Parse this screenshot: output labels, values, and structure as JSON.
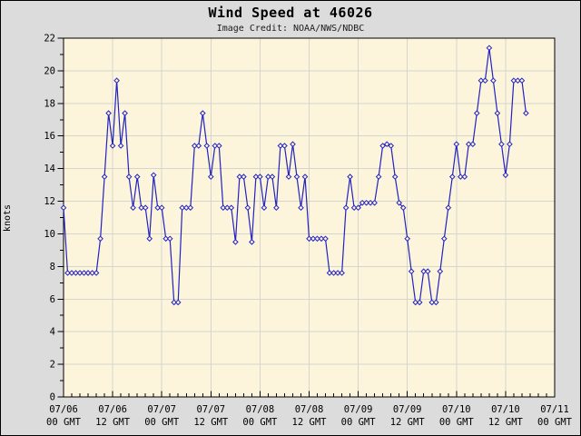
{
  "window": {
    "bg_color": "#dcdcdc",
    "border_color": "#000000"
  },
  "chart_data": {
    "type": "line",
    "title": "Wind Speed at 46026",
    "subtitle": "Image Credit: NOAA/NWS/NDBC",
    "xlabel": "",
    "ylabel": "knots",
    "ylim": [
      0,
      22
    ],
    "y_tick_step": 2,
    "y_minor_step": 1,
    "y_tick_labels": [
      "0",
      "2",
      "4",
      "6",
      "8",
      "10",
      "12",
      "14",
      "16",
      "18",
      "20",
      "22"
    ],
    "x_hours_total": 120,
    "x_minor_step_hours": 2,
    "x_major_ticks": [
      {
        "hour": 0,
        "line1": "07/06",
        "line2": "00 GMT"
      },
      {
        "hour": 12,
        "line1": "07/06",
        "line2": "12 GMT"
      },
      {
        "hour": 24,
        "line1": "07/07",
        "line2": "00 GMT"
      },
      {
        "hour": 36,
        "line1": "07/07",
        "line2": "12 GMT"
      },
      {
        "hour": 48,
        "line1": "07/08",
        "line2": "00 GMT"
      },
      {
        "hour": 60,
        "line1": "07/08",
        "line2": "12 GMT"
      },
      {
        "hour": 72,
        "line1": "07/09",
        "line2": "00 GMT"
      },
      {
        "hour": 84,
        "line1": "07/09",
        "line2": "12 GMT"
      },
      {
        "hour": 96,
        "line1": "07/10",
        "line2": "00 GMT"
      },
      {
        "hour": 108,
        "line1": "07/10",
        "line2": "12 GMT"
      },
      {
        "hour": 120,
        "line1": "07/11",
        "line2": "00 GMT"
      }
    ],
    "grid": true,
    "legend": "none",
    "marker": "open-diamond",
    "series": [
      {
        "name": "wind speed",
        "units": "knots",
        "start": "07/06 00 GMT",
        "interval_hours": 1,
        "values": [
          11.6,
          7.6,
          7.6,
          7.6,
          7.6,
          7.6,
          7.6,
          7.6,
          7.6,
          9.7,
          13.5,
          17.4,
          15.4,
          19.4,
          15.4,
          17.4,
          13.5,
          11.6,
          13.5,
          11.6,
          11.6,
          9.7,
          13.6,
          11.6,
          11.6,
          9.7,
          9.7,
          5.8,
          5.8,
          11.6,
          11.6,
          11.6,
          15.4,
          15.4,
          17.4,
          15.4,
          13.5,
          15.4,
          15.4,
          11.6,
          11.6,
          11.6,
          9.5,
          13.5,
          13.5,
          11.6,
          9.5,
          13.5,
          13.5,
          11.6,
          13.5,
          13.5,
          11.6,
          15.4,
          15.4,
          13.5,
          15.5,
          13.5,
          11.6,
          13.5,
          9.7,
          9.7,
          9.7,
          9.7,
          9.7,
          7.6,
          7.6,
          7.6,
          7.6,
          11.6,
          13.5,
          11.6,
          11.6,
          11.9,
          11.9,
          11.9,
          11.9,
          13.5,
          15.4,
          15.5,
          15.4,
          13.5,
          11.9,
          11.6,
          9.7,
          7.7,
          5.8,
          5.8,
          7.7,
          7.7,
          5.8,
          5.8,
          7.7,
          9.7,
          11.6,
          13.5,
          15.5,
          13.5,
          13.5,
          15.5,
          15.5,
          17.4,
          19.4,
          19.4,
          21.4,
          19.4,
          17.4,
          15.5,
          13.6,
          15.5,
          19.4,
          19.4,
          19.4,
          17.4
        ]
      }
    ],
    "colors": {
      "line": "#2222c2",
      "plot_bg": "#fcf5dc",
      "grid": "#d5d5cb",
      "frame": "#000000",
      "text": "#000000"
    }
  }
}
